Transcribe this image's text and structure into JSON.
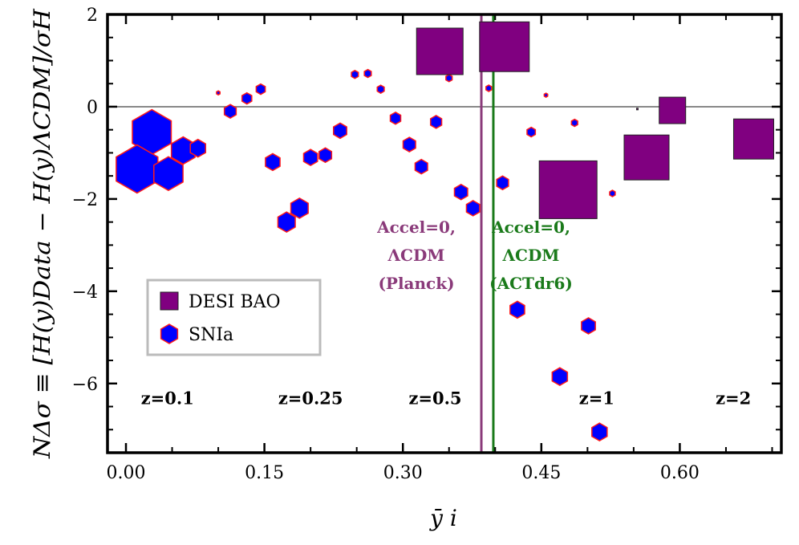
{
  "chart_data": {
    "type": "scatter",
    "xlabel": "ȳ i",
    "ylabel": "NΔσ ≡ [H(y)Data − H(y)ΛCDM]/σH",
    "xlim": [
      -0.02,
      0.71
    ],
    "ylim": [
      -7.5,
      2.0
    ],
    "x_ticks": [
      "0.00",
      "0.15",
      "0.30",
      "0.45",
      "0.60"
    ],
    "x_tick_values": [
      0.0,
      0.15,
      0.3,
      0.45,
      0.6
    ],
    "y_ticks": [
      "2",
      "0",
      "−2",
      "−4",
      "−6"
    ],
    "y_tick_values": [
      2,
      0,
      -2,
      -4,
      -6
    ],
    "grid": false,
    "legend_position": "lower-left",
    "reference_line": {
      "y": 0,
      "color": "#888888"
    },
    "vertical_lines": [
      {
        "x": 0.385,
        "color": "#8a3a7a",
        "lines": [
          "Accel=0,",
          "ΛCDM",
          "(Planck)"
        ]
      },
      {
        "x": 0.398,
        "color": "#1a7a1a",
        "lines": [
          "Accel=0,",
          "ΛCDM",
          "(ACTdr6)"
        ]
      }
    ],
    "redshift_labels": [
      {
        "text": "z=0.1",
        "x": 0.045,
        "y": -6.45
      },
      {
        "text": "z=0.25",
        "x": 0.2,
        "y": -6.45
      },
      {
        "text": "z=0.5",
        "x": 0.335,
        "y": -6.45
      },
      {
        "text": "z=1",
        "x": 0.51,
        "y": -6.45
      },
      {
        "text": "z=2",
        "x": 0.658,
        "y": -6.45
      }
    ],
    "series": [
      {
        "name": "DESI BAO",
        "marker": "square",
        "color": "#800080",
        "edge": "#222222",
        "points": [
          {
            "x": 0.34,
            "y": 1.2,
            "size": 58
          },
          {
            "x": 0.41,
            "y": 1.3,
            "size": 62
          },
          {
            "x": 0.479,
            "y": -1.8,
            "size": 72
          },
          {
            "x": 0.564,
            "y": -1.1,
            "size": 56
          },
          {
            "x": 0.592,
            "y": -0.08,
            "size": 33
          },
          {
            "x": 0.68,
            "y": -0.7,
            "size": 50
          },
          {
            "x": 0.554,
            "y": -0.05,
            "size": 2
          }
        ]
      },
      {
        "name": "SNIa",
        "marker": "hexagon",
        "color": "#0000ff",
        "edge": "#ff1a1a",
        "points": [
          {
            "x": 0.028,
            "y": -0.55,
            "size": 56
          },
          {
            "x": 0.012,
            "y": -1.35,
            "size": 60
          },
          {
            "x": 0.046,
            "y": -1.45,
            "size": 42
          },
          {
            "x": 0.062,
            "y": -0.95,
            "size": 34
          },
          {
            "x": 0.078,
            "y": -0.9,
            "size": 22
          },
          {
            "x": 0.1,
            "y": 0.3,
            "size": 5
          },
          {
            "x": 0.113,
            "y": -0.1,
            "size": 17
          },
          {
            "x": 0.131,
            "y": 0.18,
            "size": 14
          },
          {
            "x": 0.146,
            "y": 0.38,
            "size": 13
          },
          {
            "x": 0.159,
            "y": -1.2,
            "size": 21
          },
          {
            "x": 0.174,
            "y": -2.5,
            "size": 25
          },
          {
            "x": 0.188,
            "y": -2.2,
            "size": 25
          },
          {
            "x": 0.2,
            "y": -1.1,
            "size": 20
          },
          {
            "x": 0.216,
            "y": -1.05,
            "size": 18
          },
          {
            "x": 0.232,
            "y": -0.52,
            "size": 19
          },
          {
            "x": 0.248,
            "y": 0.7,
            "size": 10
          },
          {
            "x": 0.262,
            "y": 0.72,
            "size": 10
          },
          {
            "x": 0.276,
            "y": 0.38,
            "size": 10
          },
          {
            "x": 0.292,
            "y": -0.25,
            "size": 15
          },
          {
            "x": 0.307,
            "y": -0.82,
            "size": 18
          },
          {
            "x": 0.32,
            "y": -1.3,
            "size": 18
          },
          {
            "x": 0.336,
            "y": -0.33,
            "size": 16
          },
          {
            "x": 0.35,
            "y": 0.62,
            "size": 9
          },
          {
            "x": 0.363,
            "y": -1.85,
            "size": 19
          },
          {
            "x": 0.376,
            "y": -2.2,
            "size": 19
          },
          {
            "x": 0.393,
            "y": 0.4,
            "size": 8
          },
          {
            "x": 0.408,
            "y": -1.65,
            "size": 17
          },
          {
            "x": 0.424,
            "y": -4.4,
            "size": 21
          },
          {
            "x": 0.439,
            "y": -0.55,
            "size": 12
          },
          {
            "x": 0.455,
            "y": 0.25,
            "size": 5
          },
          {
            "x": 0.47,
            "y": -5.85,
            "size": 22
          },
          {
            "x": 0.486,
            "y": -0.35,
            "size": 9
          },
          {
            "x": 0.501,
            "y": -4.75,
            "size": 20
          },
          {
            "x": 0.513,
            "y": -7.05,
            "size": 22
          },
          {
            "x": 0.527,
            "y": -1.88,
            "size": 8
          }
        ]
      }
    ]
  }
}
